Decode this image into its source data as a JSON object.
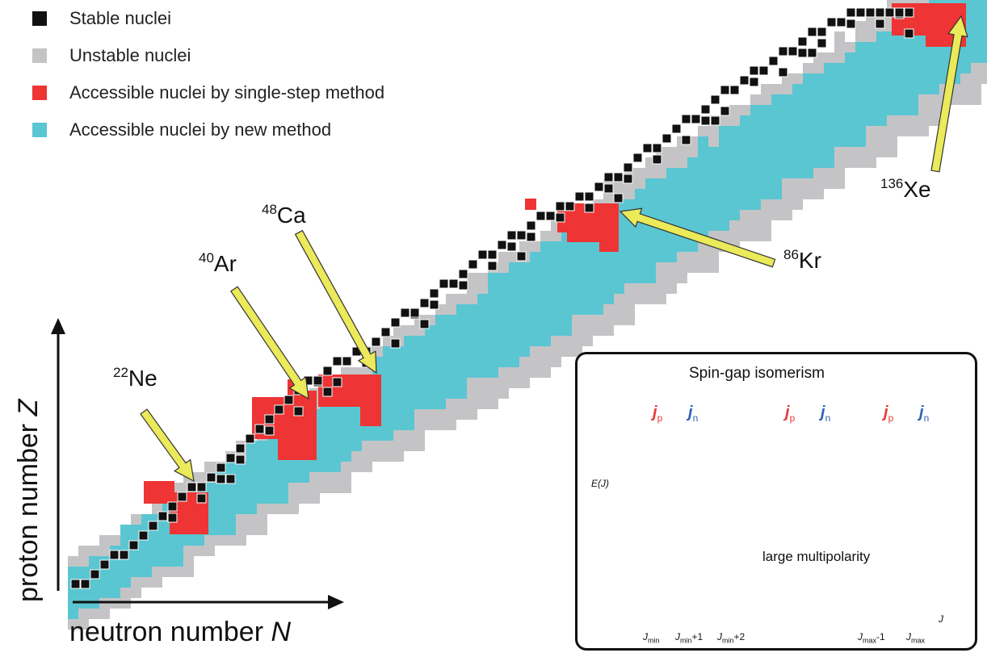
{
  "legend": {
    "stable": {
      "label": "Stable nuclei",
      "color": "#111111"
    },
    "unstable": {
      "label": "Unstable nuclei",
      "color": "#c4c4c6"
    },
    "single_step": {
      "label": "Accessible nuclei by single-step method",
      "color": "#ee3434"
    },
    "new_method": {
      "label": "Accessible nuclei by new method",
      "color": "#5ac6d2"
    }
  },
  "nuclei": [
    {
      "mass": "22",
      "symbol": "Ne"
    },
    {
      "mass": "40",
      "symbol": "Ar"
    },
    {
      "mass": "48",
      "symbol": "Ca"
    },
    {
      "mass": "86",
      "symbol": "Kr"
    },
    {
      "mass": "136",
      "symbol": "Xe"
    }
  ],
  "axes": {
    "x": {
      "prefix": "neutron number ",
      "var": "N"
    },
    "y": {
      "prefix": "proton number ",
      "var": "Z"
    }
  },
  "inset": {
    "title": "Spin-gap isomerism",
    "ylabel": "E(J)",
    "xvar": "J",
    "annotation": "large multipolarity",
    "ticks": [
      {
        "main": "J",
        "sub": "min",
        "suffix": ""
      },
      {
        "main": "J",
        "sub": "min",
        "suffix": "+1"
      },
      {
        "main": "J",
        "sub": "min",
        "suffix": "+2"
      },
      {
        "main": "J",
        "sub": "max",
        "suffix": "-1"
      },
      {
        "main": "J",
        "sub": "max",
        "suffix": ""
      }
    ],
    "spin": {
      "j": "j",
      "p": "p",
      "n": "n"
    },
    "colors": {
      "proton": "#e83a3a",
      "neutron": "#2e63b8",
      "proton_ball": "#f2a7a7",
      "neutron_ball": "#8fc4ea"
    }
  },
  "arrow_color": "#eaea5a"
}
